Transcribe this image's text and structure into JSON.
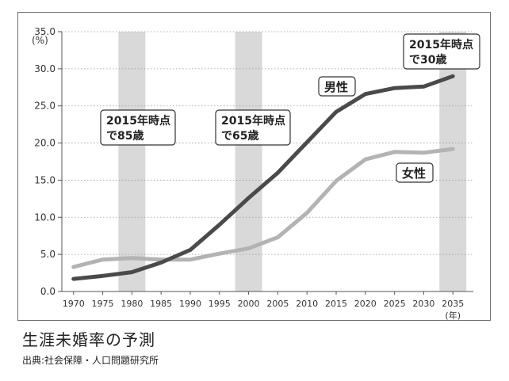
{
  "chart_data": {
    "type": "line",
    "y_unit_label": "(%)",
    "x_unit_label": "(年)",
    "ylim": [
      0,
      35
    ],
    "y_ticks": [
      "0.0",
      "5.0",
      "10.0",
      "15.0",
      "20.0",
      "25.0",
      "30.0",
      "35.0"
    ],
    "x_ticks": [
      "1970",
      "1975",
      "1980",
      "1985",
      "1990",
      "1995",
      "2000",
      "2005",
      "2010",
      "2015",
      "2020",
      "2025",
      "2030",
      "2035"
    ],
    "grid": "horizontal-dotted",
    "series": [
      {
        "name": "男性",
        "color": "#4a4a4a",
        "x": [
          1970,
          1975,
          1980,
          1985,
          1990,
          1995,
          2000,
          2005,
          2010,
          2015,
          2020,
          2025,
          2030,
          2035
        ],
        "values": [
          1.7,
          2.1,
          2.6,
          3.9,
          5.6,
          9.0,
          12.6,
          16.0,
          20.1,
          24.2,
          26.6,
          27.4,
          27.6,
          29.0
        ]
      },
      {
        "name": "女性",
        "color": "#b3b3b3",
        "x": [
          1970,
          1975,
          1980,
          1985,
          1990,
          1995,
          2000,
          2005,
          2010,
          2015,
          2020,
          2025,
          2030,
          2035
        ],
        "values": [
          3.3,
          4.3,
          4.5,
          4.3,
          4.3,
          5.1,
          5.8,
          7.3,
          10.6,
          14.9,
          17.8,
          18.8,
          18.7,
          19.2
        ]
      }
    ],
    "highlight_bands": [
      {
        "x": 1980,
        "label_lines": [
          "2015年時点",
          "で85歳"
        ]
      },
      {
        "x": 2000,
        "label_lines": [
          "2015年時点",
          "で65歳"
        ]
      },
      {
        "x": 2035,
        "label_lines": [
          "2015年時点",
          "で30歳"
        ]
      }
    ],
    "band_color": "#d9d9d9",
    "series_labels": [
      {
        "series": "男性",
        "text": "男性"
      },
      {
        "series": "女性",
        "text": "女性"
      }
    ]
  },
  "caption": {
    "title": "生涯未婚率の予測",
    "source": "出典:社会保障・人口問題研究所"
  }
}
